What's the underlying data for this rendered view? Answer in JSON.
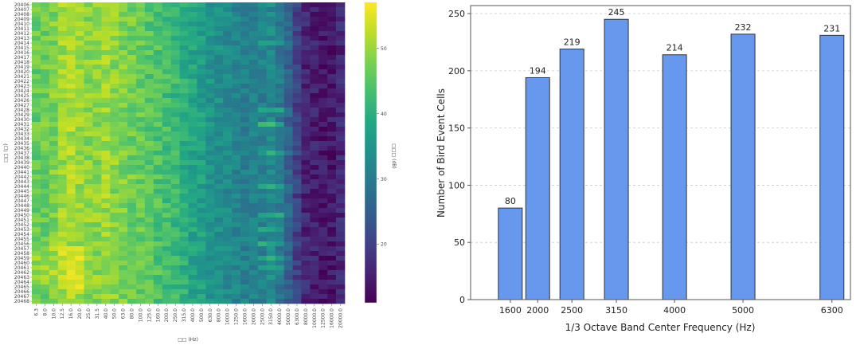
{
  "chart_data": [
    {
      "type": "heatmap",
      "title": "",
      "xlabel": "□□ (Hz)",
      "ylabel": "□□ (□)",
      "colorbar_label": "□□□ (dB)",
      "colormap": "viridis",
      "color_range": [
        11,
        57
      ],
      "colorbar_ticks": [
        "20",
        "30",
        "40",
        "50"
      ],
      "colorbar_tick_values": [
        20,
        30,
        40,
        50
      ],
      "x_categories": [
        "6.3",
        "8.0",
        "10.0",
        "12.5",
        "16.0",
        "20.0",
        "25.0",
        "31.5",
        "40.0",
        "50.0",
        "63.0",
        "80.0",
        "100.0",
        "125.0",
        "160.0",
        "200.0",
        "250.0",
        "315.0",
        "400.0",
        "500.0",
        "630.0",
        "800.0",
        "1000.0",
        "1250.0",
        "1600.0",
        "2000.0",
        "2500.0",
        "3150.0",
        "4000.0",
        "5000.0",
        "6300.0",
        "8000.0",
        "10000.0",
        "12500.0",
        "16000.0",
        "20000.0"
      ],
      "row_count": 63,
      "row_label_prefix": "204",
      "column_profile_db": [
        46,
        47,
        48,
        50,
        51,
        50,
        49,
        49,
        50,
        49,
        48,
        47,
        46,
        45,
        44,
        43,
        42,
        40,
        38,
        37,
        35,
        34,
        33,
        32,
        31,
        31,
        31,
        33,
        30,
        26,
        20,
        16,
        15,
        14,
        14,
        16
      ],
      "hotspot_columns": [
        "2500.0",
        "3150.0",
        "4000.0"
      ],
      "hotspot_rows": [
        8,
        22,
        25,
        31,
        38,
        44,
        47,
        50,
        53,
        55
      ]
    },
    {
      "type": "bar",
      "title": "",
      "xlabel": "1/3 Octave Band Center Frequency (Hz)",
      "ylabel": "Number of Bird Event Cells",
      "categories": [
        "1600",
        "2000",
        "2500",
        "3150",
        "4000",
        "5000",
        "6300"
      ],
      "x": [
        1600,
        2000,
        2500,
        3150,
        4000,
        5000,
        6300
      ],
      "values": [
        80,
        194,
        219,
        245,
        214,
        232,
        231
      ],
      "data_labels": [
        "80",
        "194",
        "219",
        "245",
        "214",
        "232",
        "231"
      ],
      "yticks": [
        "0",
        "50",
        "100",
        "150",
        "200",
        "250"
      ],
      "ytick_values": [
        0,
        50,
        100,
        150,
        200,
        250
      ],
      "ylim": [
        0,
        257
      ],
      "xlim": [
        1020,
        6570
      ],
      "grid": "y-dashed",
      "bar_color": "#6699ee",
      "bar_edge_color": "#333333"
    }
  ]
}
